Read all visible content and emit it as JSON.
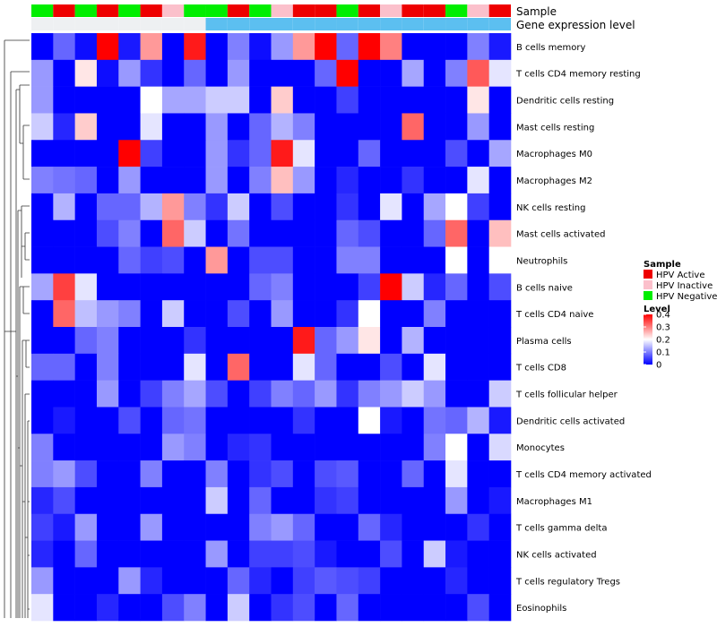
{
  "chart_data": {
    "type": "heatmap",
    "annotation_labels": {
      "sample": "Sample",
      "gene": "Gene expression level"
    },
    "rows": [
      "B cells memory",
      "T cells CD4 memory resting",
      "Dendritic cells resting",
      "Mast cells resting",
      "Macrophages M0",
      "Macrophages M2",
      "NK cells resting",
      "Mast cells activated",
      "Neutrophils",
      "B cells naive",
      "T cells CD4 naive",
      "Plasma cells",
      "T cells CD8",
      "T cells follicular helper",
      "Dendritic cells activated",
      "Monocytes",
      "T cells CD4 memory activated",
      "Macrophages M1",
      "T cells gamma delta",
      "NK cells activated",
      "T cells regulatory  Tregs",
      "Eosinophils"
    ],
    "sample_groups": [
      "Negative",
      "Active",
      "Negative",
      "Active",
      "Negative",
      "Active",
      "Inactive",
      "Negative",
      "Negative",
      "Active",
      "Negative",
      "Inactive",
      "Active",
      "Active",
      "Negative",
      "Active",
      "Inactive",
      "Active",
      "Active",
      "Negative",
      "Inactive",
      "Active"
    ],
    "gene_levels": [
      "low",
      "low",
      "low",
      "low",
      "low",
      "low",
      "low",
      "low",
      "high",
      "high",
      "high",
      "high",
      "high",
      "high",
      "high",
      "high",
      "high",
      "high",
      "high",
      "high",
      "high",
      "high"
    ],
    "values": [
      [
        0.0,
        0.08,
        0.01,
        0.4,
        0.02,
        0.28,
        0.0,
        0.38,
        0.0,
        0.1,
        0.01,
        0.12,
        0.28,
        0.4,
        0.08,
        0.4,
        0.3,
        0.0,
        0.0,
        0.0,
        0.1,
        0.02
      ],
      [
        0.12,
        0.0,
        0.22,
        0.01,
        0.12,
        0.04,
        0.0,
        0.08,
        0.0,
        0.12,
        0.0,
        0.0,
        0.0,
        0.08,
        0.4,
        0.0,
        0.0,
        0.13,
        0.0,
        0.1,
        0.33,
        0.18
      ],
      [
        0.12,
        0.0,
        0.0,
        0.0,
        0.0,
        0.2,
        0.13,
        0.13,
        0.16,
        0.16,
        0.0,
        0.24,
        0.0,
        0.0,
        0.05,
        0.0,
        0.0,
        0.0,
        0.0,
        0.0,
        0.22,
        0.0
      ],
      [
        0.16,
        0.03,
        0.24,
        0.0,
        0.0,
        0.18,
        0.0,
        0.0,
        0.12,
        0.0,
        0.08,
        0.14,
        0.1,
        0.0,
        0.0,
        0.0,
        0.0,
        0.32,
        0.0,
        0.0,
        0.12,
        0.0
      ],
      [
        0.0,
        0.0,
        0.0,
        0.0,
        0.4,
        0.05,
        0.0,
        0.0,
        0.12,
        0.04,
        0.08,
        0.38,
        0.18,
        0.0,
        0.0,
        0.08,
        0.0,
        0.0,
        0.0,
        0.06,
        0.0,
        0.13
      ],
      [
        0.1,
        0.09,
        0.08,
        0.0,
        0.12,
        0.0,
        0.0,
        0.0,
        0.12,
        0.0,
        0.1,
        0.25,
        0.12,
        0.0,
        0.03,
        0.0,
        0.0,
        0.04,
        0.0,
        0.0,
        0.18,
        0.0
      ],
      [
        0.0,
        0.14,
        0.0,
        0.08,
        0.08,
        0.14,
        0.28,
        0.1,
        0.04,
        0.16,
        0.0,
        0.06,
        0.0,
        0.0,
        0.04,
        0.0,
        0.18,
        0.0,
        0.13,
        0.2,
        0.05,
        0.0
      ],
      [
        0.0,
        0.0,
        0.0,
        0.06,
        0.1,
        0.0,
        0.32,
        0.16,
        0.0,
        0.09,
        0.0,
        0.0,
        0.0,
        0.0,
        0.08,
        0.06,
        0.0,
        0.0,
        0.08,
        0.32,
        0.0,
        0.25
      ],
      [
        0.0,
        0.0,
        0.0,
        0.0,
        0.08,
        0.05,
        0.06,
        0.0,
        0.28,
        0.0,
        0.06,
        0.06,
        0.0,
        0.0,
        0.1,
        0.1,
        0.0,
        0.0,
        0.0,
        0.2,
        0.0,
        0.2
      ],
      [
        0.13,
        0.35,
        0.18,
        0.0,
        0.0,
        0.0,
        0.0,
        0.0,
        0.0,
        0.0,
        0.08,
        0.1,
        0.0,
        0.0,
        0.0,
        0.05,
        0.4,
        0.16,
        0.03,
        0.08,
        0.0,
        0.06
      ],
      [
        0.0,
        0.32,
        0.15,
        0.12,
        0.1,
        0.0,
        0.16,
        0.0,
        0.0,
        0.06,
        0.0,
        0.12,
        0.0,
        0.0,
        0.04,
        0.2,
        0.0,
        0.0,
        0.1,
        0.0,
        0.0,
        0.0
      ],
      [
        0.0,
        0.0,
        0.08,
        0.1,
        0.0,
        0.0,
        0.0,
        0.04,
        0.0,
        0.0,
        0.0,
        0.0,
        0.38,
        0.08,
        0.12,
        0.22,
        0.0,
        0.14,
        0.0,
        0.0,
        0.0,
        0.0
      ],
      [
        0.08,
        0.08,
        0.0,
        0.1,
        0.0,
        0.0,
        0.0,
        0.18,
        0.0,
        0.32,
        0.0,
        0.0,
        0.18,
        0.08,
        0.0,
        0.0,
        0.06,
        0.0,
        0.18,
        0.0,
        0.0,
        0.0
      ],
      [
        0.0,
        0.0,
        0.0,
        0.12,
        0.0,
        0.05,
        0.1,
        0.13,
        0.06,
        0.0,
        0.05,
        0.1,
        0.08,
        0.12,
        0.04,
        0.1,
        0.12,
        0.16,
        0.12,
        0.0,
        0.0,
        0.16
      ],
      [
        0.0,
        0.02,
        0.0,
        0.0,
        0.06,
        0.0,
        0.08,
        0.09,
        0.0,
        0.0,
        0.0,
        0.0,
        0.04,
        0.0,
        0.0,
        0.2,
        0.02,
        0.0,
        0.09,
        0.08,
        0.14,
        0.02
      ],
      [
        0.1,
        0.0,
        0.0,
        0.0,
        0.0,
        0.0,
        0.12,
        0.1,
        0.0,
        0.03,
        0.04,
        0.0,
        0.0,
        0.0,
        0.0,
        0.0,
        0.0,
        0.0,
        0.1,
        0.2,
        0.0,
        0.17
      ],
      [
        0.1,
        0.12,
        0.06,
        0.0,
        0.0,
        0.1,
        0.0,
        0.0,
        0.1,
        0.0,
        0.04,
        0.06,
        0.0,
        0.06,
        0.07,
        0.0,
        0.0,
        0.08,
        0.0,
        0.18,
        0.0,
        0.0
      ],
      [
        0.03,
        0.06,
        0.0,
        0.0,
        0.0,
        0.0,
        0.0,
        0.0,
        0.16,
        0.0,
        0.08,
        0.0,
        0.0,
        0.04,
        0.05,
        0.0,
        0.0,
        0.0,
        0.0,
        0.12,
        0.0,
        0.02
      ],
      [
        0.05,
        0.02,
        0.12,
        0.0,
        0.0,
        0.12,
        0.0,
        0.0,
        0.0,
        0.0,
        0.1,
        0.12,
        0.08,
        0.0,
        0.0,
        0.08,
        0.03,
        0.0,
        0.0,
        0.0,
        0.04,
        0.0
      ],
      [
        0.03,
        0.0,
        0.08,
        0.0,
        0.0,
        0.0,
        0.0,
        0.0,
        0.12,
        0.0,
        0.05,
        0.05,
        0.06,
        0.02,
        0.0,
        0.0,
        0.06,
        0.0,
        0.16,
        0.02,
        0.0,
        0.0
      ],
      [
        0.12,
        0.0,
        0.0,
        0.0,
        0.12,
        0.03,
        0.0,
        0.0,
        0.0,
        0.08,
        0.03,
        0.0,
        0.05,
        0.07,
        0.06,
        0.05,
        0.0,
        0.0,
        0.0,
        0.03,
        0.0,
        0.0
      ],
      [
        0.18,
        0.0,
        0.0,
        0.03,
        0.0,
        0.0,
        0.06,
        0.1,
        0.0,
        0.16,
        0.0,
        0.04,
        0.06,
        0.0,
        0.08,
        0.0,
        0.0,
        0.0,
        0.0,
        0.0,
        0.06,
        0.0
      ]
    ],
    "sample_legend": {
      "title": "Sample",
      "entries": [
        {
          "label": "HPV Active",
          "color": "#ee0000"
        },
        {
          "label": "HPV Inactive",
          "color": "#fbc0cb"
        },
        {
          "label": "HPV Negative",
          "color": "#00ee00"
        }
      ]
    },
    "gene_colors": {
      "low": "#eef0f2",
      "high": "#5cbff0"
    },
    "level_legend": {
      "title": "Level",
      "min": 0,
      "max": 0.4,
      "ticks": [
        0.4,
        0.3,
        0.2,
        0.1,
        0
      ],
      "tick_labels": [
        "0.4",
        "0.3",
        "0.2",
        "0.1",
        "0"
      ]
    },
    "color_scale": {
      "low": "#0000ff",
      "mid": "#ffffff",
      "high": "#ff0000",
      "midpoint": 0.2
    }
  }
}
